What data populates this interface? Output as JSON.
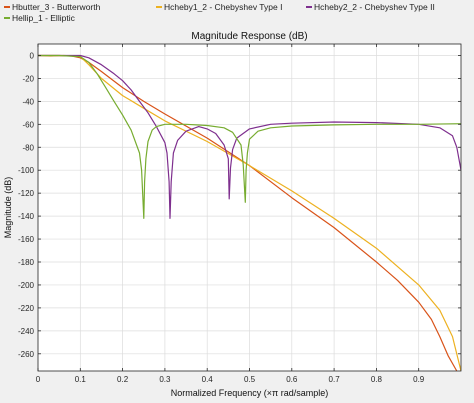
{
  "chart_data": {
    "type": "line",
    "title": "Magnitude Response (dB)",
    "xlabel": "Normalized Frequency (×π rad/sample)",
    "ylabel": "Magnitude (dB)",
    "xlim": [
      0,
      1
    ],
    "ylim": [
      -275,
      10
    ],
    "xticks": [
      0,
      0.1,
      0.2,
      0.3,
      0.4,
      0.5,
      0.6,
      0.7,
      0.8,
      0.9
    ],
    "xtick_labels": [
      "0",
      "0.1",
      "0.2",
      "0.3",
      "0.4",
      "0.5",
      "0.6",
      "0.7",
      "0.8",
      "0.9"
    ],
    "yticks": [
      0,
      -20,
      -40,
      -60,
      -80,
      -100,
      -120,
      -140,
      -160,
      -180,
      -200,
      -220,
      -240,
      -260
    ],
    "ytick_labels": [
      "0",
      "-20",
      "-40",
      "-60",
      "-80",
      "-100",
      "-120",
      "-140",
      "-160",
      "-180",
      "-200",
      "-220",
      "-240",
      "-260"
    ],
    "grid": true,
    "legend_position": "top",
    "series": [
      {
        "name": "Hbutter_3 - Butterworth",
        "color": "#d95319",
        "x": [
          0,
          0.05,
          0.08,
          0.1,
          0.12,
          0.15,
          0.2,
          0.25,
          0.3,
          0.4,
          0.5,
          0.6,
          0.7,
          0.8,
          0.85,
          0.9,
          0.93,
          0.95,
          0.97,
          0.99
        ],
        "y": [
          0,
          0,
          -0.5,
          -2,
          -6,
          -14,
          -28,
          -40,
          -51,
          -72,
          -96,
          -124,
          -150,
          -180,
          -196,
          -215,
          -230,
          -245,
          -262,
          -275
        ]
      },
      {
        "name": "Hcheby1_2 - Chebyshev Type I",
        "color": "#edb120",
        "x": [
          0,
          0.03,
          0.06,
          0.09,
          0.1,
          0.12,
          0.15,
          0.2,
          0.25,
          0.3,
          0.4,
          0.5,
          0.6,
          0.7,
          0.8,
          0.9,
          0.95,
          0.98,
          1.0
        ],
        "y": [
          0,
          -0.5,
          0,
          -0.5,
          -1,
          -8,
          -20,
          -35,
          -46,
          -57,
          -75,
          -96,
          -118,
          -142,
          -168,
          -200,
          -222,
          -245,
          -275
        ]
      },
      {
        "name": "Hcheby2_2 - Chebyshev Type II",
        "color": "#7e2f8e",
        "x": [
          0,
          0.1,
          0.12,
          0.15,
          0.18,
          0.2,
          0.22,
          0.24,
          0.26,
          0.28,
          0.3,
          0.305,
          0.31,
          0.312,
          0.315,
          0.32,
          0.33,
          0.35,
          0.38,
          0.4,
          0.42,
          0.44,
          0.45,
          0.452,
          0.455,
          0.46,
          0.47,
          0.5,
          0.55,
          0.6,
          0.7,
          0.8,
          0.9,
          0.95,
          0.98,
          0.99,
          1.0
        ],
        "y": [
          0,
          0,
          -2,
          -8,
          -16,
          -22,
          -30,
          -40,
          -50,
          -62,
          -76,
          -85,
          -110,
          -142,
          -110,
          -85,
          -74,
          -66,
          -62,
          -64,
          -68,
          -78,
          -90,
          -125,
          -98,
          -82,
          -72,
          -64,
          -60,
          -59,
          -58,
          -58.5,
          -60,
          -63,
          -70,
          -80,
          -100
        ]
      },
      {
        "name": "Hellip_1 - Elliptic",
        "color": "#77ac30",
        "x": [
          0,
          0.05,
          0.1,
          0.12,
          0.14,
          0.16,
          0.18,
          0.2,
          0.22,
          0.24,
          0.245,
          0.25,
          0.252,
          0.255,
          0.26,
          0.27,
          0.28,
          0.3,
          0.35,
          0.4,
          0.44,
          0.46,
          0.48,
          0.485,
          0.49,
          0.492,
          0.495,
          0.5,
          0.52,
          0.55,
          0.6,
          0.7,
          0.8,
          0.9,
          1.0
        ],
        "y": [
          0,
          0,
          -1,
          -6,
          -16,
          -28,
          -40,
          -52,
          -65,
          -85,
          -100,
          -142,
          -110,
          -90,
          -75,
          -65,
          -62,
          -60,
          -60,
          -61,
          -63,
          -67,
          -78,
          -95,
          -128,
          -100,
          -85,
          -73,
          -66,
          -63,
          -61.5,
          -60.5,
          -60,
          -60,
          -59.5
        ]
      }
    ]
  }
}
